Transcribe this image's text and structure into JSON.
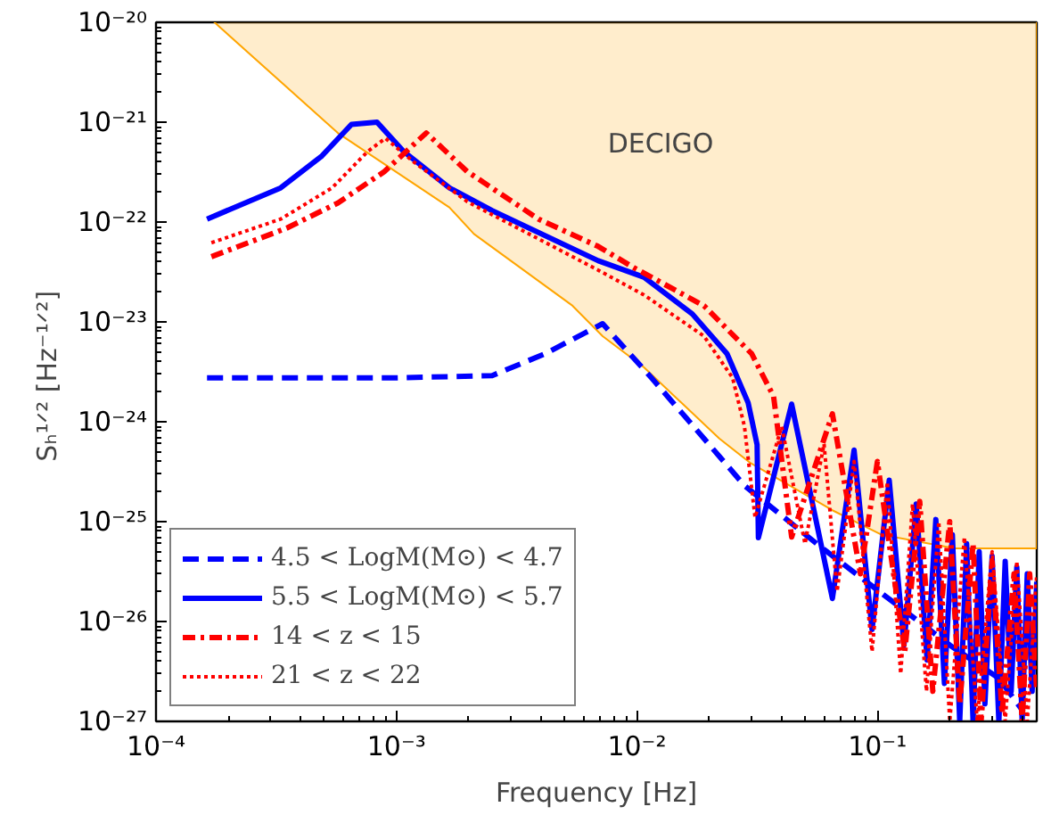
{
  "chart_data": {
    "type": "line",
    "xlabel": "Frequency [Hz]",
    "ylabel": "Sₕ¹ᐟ²  [Hz⁻¹ᐟ²]",
    "log": "xy",
    "grid": false,
    "legend": "bottom left",
    "xlim": [
      0.0001,
      0.46
    ],
    "ylim": [
      1e-27,
      1e-20
    ],
    "xticks": [
      {
        "value": 0.0001,
        "label": "10⁻⁴"
      },
      {
        "value": 0.001,
        "label": "10⁻³"
      },
      {
        "value": 0.01,
        "label": "10⁻²"
      },
      {
        "value": 0.1,
        "label": "10⁻¹"
      }
    ],
    "yticks": [
      {
        "value": 1e-27,
        "label": "10⁻²⁷"
      },
      {
        "value": 1e-26,
        "label": "10⁻²⁶"
      },
      {
        "value": 1e-25,
        "label": "10⁻²⁵"
      },
      {
        "value": 1e-24,
        "label": "10⁻²⁴"
      },
      {
        "value": 1e-23,
        "label": "10⁻²³"
      },
      {
        "value": 1e-22,
        "label": "10⁻²²"
      },
      {
        "value": 1e-21,
        "label": "10⁻²¹"
      },
      {
        "value": 1e-20,
        "label": "10⁻²⁰"
      }
    ],
    "annotations": [
      "DECIGO"
    ],
    "series": [
      {
        "type": "area",
        "color": "#ffa500",
        "line_style": "solid",
        "x": [
          0.000175,
          0.00057,
          0.00166,
          0.0021,
          0.0054,
          0.0072,
          0.0107,
          0.022,
          0.0295,
          0.065,
          0.104,
          0.21,
          0.46
        ],
        "values": [
          1e-20,
          7.8e-22,
          1.4e-22,
          7.6e-23,
          1.45e-23,
          7.2e-24,
          3.5e-24,
          6.8e-25,
          3.9e-25,
          1.3e-25,
          7.4e-26,
          5.4e-26,
          5.4e-26
        ]
      },
      {
        "name": "4.5 < LogM(M⊙) < 4.7",
        "color": "#0000ff",
        "line_style": "dashed",
        "x": [
          0.000163,
          0.0005,
          0.001,
          0.0025,
          0.00415,
          0.0061,
          0.0072,
          0.0115,
          0.019,
          0.028,
          0.058,
          0.115,
          0.2,
          0.32,
          0.4
        ],
        "values": [
          2.75e-24,
          2.75e-24,
          2.75e-24,
          2.9e-24,
          4.8e-24,
          7.8e-24,
          9.6e-24,
          2.75e-24,
          6.8e-25,
          2.3e-25,
          5.6e-26,
          1.6e-26,
          5.8e-27,
          2.7e-27,
          1.3e-27
        ]
      },
      {
        "name": "5.5 < LogM(M⊙) < 5.7",
        "color": "#0000ff",
        "line_style": "solid",
        "x": [
          0.000163,
          0.00033,
          0.00049,
          0.00065,
          0.00083,
          0.00107,
          0.00166,
          0.0025,
          0.0069,
          0.0107,
          0.017,
          0.0237,
          0.029,
          0.0316,
          0.032,
          0.044,
          0.065,
          0.08,
          0.095,
          0.112,
          0.129,
          0.145,
          0.161,
          0.175,
          0.19,
          0.205,
          0.22,
          0.235,
          0.25,
          0.265,
          0.28,
          0.3,
          0.32,
          0.34,
          0.36,
          0.38,
          0.4,
          0.42,
          0.44,
          0.46
        ],
        "values": [
          1.07e-22,
          2.2e-22,
          4.6e-22,
          9.5e-22,
          1e-21,
          5.1e-22,
          2.2e-22,
          1.3e-22,
          4.1e-23,
          2.8e-23,
          1.2e-23,
          4.8e-24,
          1.55e-24,
          5.9e-25,
          6.9e-26,
          1.5e-24,
          1.7e-26,
          5.2e-25,
          8.3e-27,
          2.6e-25,
          5.8e-27,
          1.5e-25,
          4.1e-27,
          1.05e-25,
          2.4e-27,
          7.4e-26,
          1e-27,
          6e-26,
          1e-27,
          5e-26,
          1.5e-27,
          4.5e-26,
          1e-27,
          4e-26,
          2e-27,
          3.5e-26,
          1e-27,
          3e-26,
          2e-27,
          2.5e-26
        ]
      },
      {
        "name": "14 < z < 15",
        "color": "#ff0000",
        "line_style": "dashdot",
        "x": [
          0.00017,
          0.00035,
          0.00057,
          0.00089,
          0.00133,
          0.00197,
          0.0039,
          0.0069,
          0.0097,
          0.019,
          0.03,
          0.037,
          0.044,
          0.065,
          0.085,
          0.1,
          0.13,
          0.15,
          0.17,
          0.2,
          0.22,
          0.25,
          0.27,
          0.3,
          0.33,
          0.37,
          0.4,
          0.43,
          0.46
        ],
        "values": [
          4.5e-23,
          8.7e-23,
          1.55e-22,
          3.2e-22,
          7.8e-22,
          3.2e-22,
          1.07e-22,
          5.7e-23,
          3.5e-23,
          1.45e-23,
          4.8e-24,
          1.8e-24,
          7e-26,
          1.2e-24,
          3e-26,
          4e-25,
          5e-27,
          1.6e-25,
          2e-27,
          1e-25,
          1.5e-27,
          6e-26,
          1e-27,
          4e-26,
          1.2e-27,
          3e-26,
          1e-27,
          3e-26,
          2e-27
        ]
      },
      {
        "name": "21 < z < 22",
        "color": "#ff0000",
        "line_style": "dotted",
        "x": [
          0.00017,
          0.00033,
          0.00054,
          0.00076,
          0.0009,
          0.00118,
          0.00197,
          0.0069,
          0.0107,
          0.019,
          0.025,
          0.028,
          0.031,
          0.04,
          0.05,
          0.06,
          0.068,
          0.08,
          0.095,
          0.11,
          0.125,
          0.14,
          0.16,
          0.18,
          0.2,
          0.23,
          0.26,
          0.3,
          0.34,
          0.38,
          0.42,
          0.46
        ],
        "values": [
          6.2e-23,
          1.07e-22,
          2.2e-22,
          5.1e-22,
          6.9e-22,
          4e-22,
          1.6e-22,
          3.3e-23,
          1.86e-23,
          7.2e-24,
          2.75e-24,
          9e-25,
          1.1e-25,
          9e-25,
          6e-26,
          6e-25,
          2e-26,
          4e-25,
          5e-27,
          2.5e-25,
          3e-27,
          1.5e-25,
          2e-27,
          1e-25,
          1e-27,
          7e-26,
          1e-27,
          5e-26,
          1e-27,
          4e-26,
          1e-27,
          3e-26
        ]
      }
    ]
  }
}
